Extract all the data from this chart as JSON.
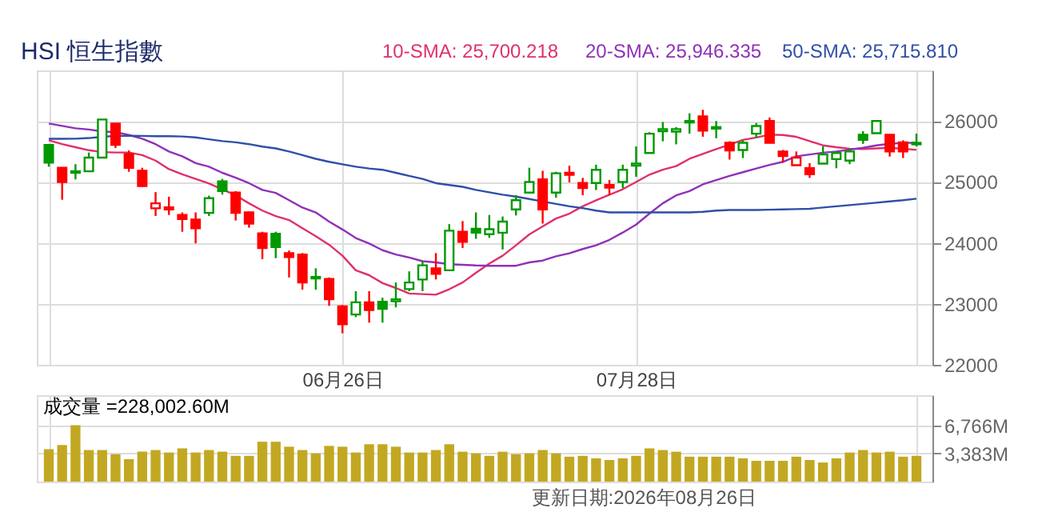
{
  "chart_data": [
    {
      "type": "candlestick",
      "title": "HSI 恒生指數",
      "legend": "top right",
      "grid": true,
      "categories": [
        null,
        null,
        null,
        null,
        null,
        null,
        null,
        null,
        null,
        null,
        null,
        null,
        null,
        null,
        null,
        null,
        null,
        null,
        null,
        null,
        null,
        null,
        "06月26日",
        null,
        null,
        null,
        null,
        null,
        null,
        null,
        null,
        null,
        null,
        null,
        null,
        null,
        null,
        null,
        null,
        null,
        null,
        null,
        null,
        null,
        "07月28日",
        null,
        null,
        null,
        null,
        null,
        null,
        null,
        null,
        null,
        null,
        null,
        null,
        null,
        null,
        null,
        null,
        null,
        null,
        null,
        null,
        null
      ],
      "ohlc": [
        [
          25608,
          25625,
          25250,
          25317
        ],
        [
          25233,
          25233,
          24708,
          25000
        ],
        [
          25150,
          25292,
          25042,
          25175
        ],
        [
          25175,
          25483,
          25175,
          25400
        ],
        [
          25400,
          26025,
          25400,
          26025
        ],
        [
          25958,
          25958,
          25558,
          25608
        ],
        [
          25458,
          25517,
          25167,
          25233
        ],
        [
          25183,
          25233,
          24917,
          24933
        ],
        [
          24567,
          24833,
          24442,
          24650
        ],
        [
          24583,
          24758,
          24458,
          24550
        ],
        [
          24458,
          24500,
          24183,
          24392
        ],
        [
          24383,
          24500,
          23992,
          24242
        ],
        [
          24492,
          24775,
          24442,
          24733
        ],
        [
          25008,
          25050,
          24792,
          24850
        ],
        [
          24825,
          24850,
          24367,
          24492
        ],
        [
          24500,
          24517,
          24250,
          24317
        ],
        [
          24158,
          24183,
          23733,
          23917
        ],
        [
          24150,
          24183,
          23750,
          23933
        ],
        [
          23833,
          23875,
          23433,
          23767
        ],
        [
          23808,
          23833,
          23233,
          23350
        ],
        [
          23417,
          23583,
          23233,
          23442
        ],
        [
          23408,
          23433,
          22967,
          23075
        ],
        [
          22958,
          22983,
          22517,
          22667
        ],
        [
          22825,
          23208,
          22783,
          23025
        ],
        [
          23025,
          23208,
          22692,
          22900
        ],
        [
          23033,
          23100,
          22692,
          22917
        ],
        [
          23042,
          23350,
          22942,
          23075
        ],
        [
          23242,
          23533,
          23208,
          23350
        ],
        [
          23400,
          23700,
          23208,
          23633
        ],
        [
          23583,
          23833,
          23400,
          23492
        ],
        [
          23550,
          24308,
          23550,
          24200
        ],
        [
          24183,
          24358,
          23917,
          24017
        ],
        [
          24233,
          24500,
          24067,
          24167
        ],
        [
          24142,
          24458,
          24083,
          24225
        ],
        [
          24167,
          24433,
          23892,
          24350
        ],
        [
          24550,
          24783,
          24450,
          24700
        ],
        [
          24825,
          25233,
          24825,
          25000
        ],
        [
          25042,
          25183,
          24317,
          24550
        ],
        [
          24825,
          25167,
          24742,
          25142
        ],
        [
          25150,
          25267,
          24992,
          25117
        ],
        [
          24983,
          25067,
          24783,
          24900
        ],
        [
          24983,
          25283,
          24867,
          25200
        ],
        [
          24950,
          25033,
          24783,
          24908
        ],
        [
          25000,
          25283,
          24900,
          25200
        ],
        [
          25267,
          25583,
          25083,
          25300
        ],
        [
          25475,
          25817,
          25475,
          25792
        ],
        [
          25833,
          25983,
          25667,
          25867
        ],
        [
          25825,
          25900,
          25617,
          25867
        ],
        [
          25975,
          26125,
          25792,
          26000
        ],
        [
          26075,
          26183,
          25742,
          25842
        ],
        [
          25875,
          26000,
          25717,
          25900
        ],
        [
          25642,
          25667,
          25367,
          25517
        ],
        [
          25525,
          25683,
          25392,
          25642
        ],
        [
          25792,
          25967,
          25725,
          25917
        ],
        [
          26000,
          26058,
          25642,
          25642
        ],
        [
          25500,
          25525,
          25317,
          25425
        ],
        [
          25275,
          25500,
          25275,
          25400
        ],
        [
          25225,
          25308,
          25067,
          25125
        ],
        [
          25300,
          25583,
          25300,
          25450
        ],
        [
          25375,
          25500,
          25225,
          25475
        ],
        [
          25350,
          25542,
          25292,
          25500
        ],
        [
          25775,
          25833,
          25625,
          25692
        ],
        [
          25800,
          26000,
          25800,
          26000
        ],
        [
          25775,
          25775,
          25417,
          25500
        ],
        [
          25650,
          25683,
          25392,
          25500
        ],
        [
          25642,
          25792,
          25583,
          25617
        ]
      ],
      "colors": [
        "#009900",
        "#ff0000",
        "#009900",
        "#009900",
        "#009900",
        "#ff0000",
        "#ff0000",
        "#ff0000",
        "#ff0000",
        "#ff0000",
        "#ff0000",
        "#ff0000",
        "#009900",
        "#009900",
        "#ff0000",
        "#ff0000",
        "#ff0000",
        "#009900",
        "#ff0000",
        "#ff0000",
        "#009900",
        "#ff0000",
        "#ff0000",
        "#009900",
        "#ff0000",
        "#009900",
        "#009900",
        "#009900",
        "#009900",
        "#ff0000",
        "#009900",
        "#ff0000",
        "#009900",
        "#009900",
        "#009900",
        "#009900",
        "#009900",
        "#ff0000",
        "#009900",
        "#ff0000",
        "#ff0000",
        "#009900",
        "#ff0000",
        "#009900",
        "#009900",
        "#009900",
        "#009900",
        "#009900",
        "#009900",
        "#ff0000",
        "#009900",
        "#ff0000",
        "#009900",
        "#009900",
        "#ff0000",
        "#ff0000",
        "#ff0000",
        "#ff0000",
        "#009900",
        "#009900",
        "#009900",
        "#009900",
        "#009900",
        "#ff0000",
        "#ff0000",
        "#009900"
      ],
      "series": [
        {
          "type": "line",
          "name": "10-SMA: 25,700.218",
          "color": "#e0306a",
          "values": [
            25683,
            25620,
            25570,
            25520,
            25490,
            25483,
            25483,
            25440,
            25350,
            25210,
            25125,
            25050,
            24975,
            24880,
            24780,
            24650,
            24530,
            24440,
            24375,
            24240,
            24110,
            23970,
            23790,
            23550,
            23470,
            23340,
            23260,
            23170,
            23160,
            23150,
            23240,
            23350,
            23510,
            23660,
            23790,
            23960,
            24140,
            24270,
            24400,
            24480,
            24600,
            24700,
            24790,
            24880,
            25000,
            25120,
            25200,
            25260,
            25380,
            25460,
            25540,
            25610,
            25690,
            25730,
            25775,
            25770,
            25740,
            25670,
            25600,
            25570,
            25545,
            25540,
            25550,
            25560,
            25545,
            25525
          ]
        },
        {
          "type": "line",
          "name": "20-SMA: 25,946.335",
          "color": "#9030b8",
          "values": [
            25958,
            25920,
            25880,
            25860,
            25830,
            25817,
            25770,
            25710,
            25620,
            25500,
            25420,
            25310,
            25250,
            25150,
            25070,
            24980,
            24870,
            24820,
            24700,
            24580,
            24500,
            24350,
            24220,
            24080,
            23990,
            23880,
            23810,
            23760,
            23700,
            23680,
            23650,
            23640,
            23630,
            23625,
            23625,
            23625,
            23680,
            23710,
            23780,
            23830,
            23900,
            23960,
            24050,
            24170,
            24300,
            24480,
            24650,
            24780,
            24850,
            24960,
            25030,
            25100,
            25160,
            25220,
            25280,
            25330,
            25420,
            25450,
            25480,
            25500,
            25530,
            25560,
            25600,
            25625,
            25640,
            25642
          ]
        },
        {
          "type": "line",
          "name": "50-SMA: 25,715.810",
          "color": "#2f4fa8",
          "values": [
            25708,
            25708,
            25710,
            25720,
            25740,
            25755,
            25758,
            25755,
            25750,
            25750,
            25745,
            25730,
            25700,
            25670,
            25650,
            25620,
            25580,
            25550,
            25500,
            25440,
            25380,
            25330,
            25290,
            25250,
            25220,
            25200,
            25150,
            25100,
            25050,
            24980,
            24950,
            24920,
            24870,
            24830,
            24790,
            24760,
            24720,
            24680,
            24640,
            24600,
            24570,
            24530,
            24500,
            24500,
            24500,
            24500,
            24500,
            24500,
            24500,
            24510,
            24530,
            24540,
            24540,
            24540,
            24545,
            24550,
            24555,
            24560,
            24580,
            24600,
            24620,
            24640,
            24660,
            24680,
            24700,
            24725
          ]
        }
      ],
      "ylim": [
        22000,
        26830
      ],
      "yticks": [
        22000,
        23000,
        24000,
        25000,
        26000
      ]
    },
    {
      "type": "bar",
      "title": "成交量 =228,002.60M",
      "grid": true,
      "tick_labels": "y",
      "color": "#c2a822",
      "categories": [
        null,
        null,
        null,
        null,
        null,
        null,
        null,
        null,
        null,
        null,
        null,
        null,
        null,
        null,
        null,
        null,
        null,
        null,
        null,
        null,
        null,
        null,
        null,
        null,
        null,
        null,
        null,
        null,
        null,
        null,
        null,
        null,
        null,
        null,
        null,
        null,
        null,
        null,
        null,
        null,
        null,
        null,
        null,
        null,
        null,
        null,
        null,
        null,
        null,
        null,
        null,
        null,
        null,
        null,
        null,
        null,
        null,
        null,
        null,
        null,
        null,
        null,
        null,
        null,
        null,
        null
      ],
      "values": [
        3900,
        4400,
        6800,
        3800,
        3800,
        3300,
        2700,
        3600,
        3800,
        3500,
        4000,
        3500,
        3800,
        3600,
        3100,
        3100,
        4800,
        4800,
        4200,
        3800,
        3400,
        4300,
        4200,
        3500,
        4500,
        4500,
        4200,
        3500,
        3500,
        3800,
        4500,
        3600,
        3400,
        3100,
        3600,
        3300,
        3400,
        3800,
        3400,
        3000,
        3100,
        2800,
        2600,
        2800,
        3100,
        4000,
        3800,
        3600,
        3000,
        3000,
        3000,
        3000,
        2800,
        2500,
        2500,
        2500,
        3000,
        2600,
        2300,
        2800,
        3500,
        3800,
        3500,
        3600,
        3000,
        3100
      ],
      "ylim": [
        0,
        10400
      ],
      "yticks": [
        {
          "value": 3383,
          "label": "3,383M"
        },
        {
          "value": 6766,
          "label": "6,766M"
        }
      ],
      "annotations": [
        "更新日期:2026年08月26日"
      ]
    }
  ]
}
